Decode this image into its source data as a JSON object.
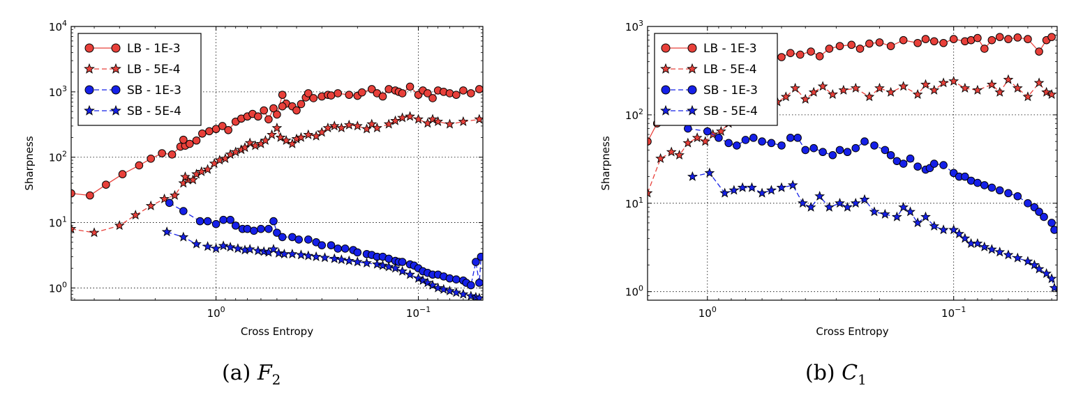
{
  "legend_labels": [
    "LB - 1E-3",
    "LB - 5E-4",
    "SB - 1E-3",
    "SB - 5E-4"
  ],
  "colors": {
    "lb": "#e8403a",
    "sb": "#1520e8",
    "axis": "#000000",
    "grid": "#000000"
  },
  "chart_data": [
    {
      "type": "line",
      "caption_prefix": "(a)",
      "caption_var": "F",
      "caption_sub": "2",
      "xlabel": "Cross Entropy",
      "ylabel": "Sharpness",
      "xscale": "log",
      "xreversed": true,
      "yscale": "log",
      "xlim": [
        5.2,
        0.048
      ],
      "ylim": [
        0.65,
        10000
      ],
      "xticks": [
        {
          "value": 1,
          "label": "10^0"
        },
        {
          "value": 0.1,
          "label": "10^-1"
        }
      ],
      "yticks": [
        {
          "value": 1,
          "label": "10^0"
        },
        {
          "value": 10,
          "label": "10^1"
        },
        {
          "value": 100,
          "label": "10^2"
        },
        {
          "value": 1000,
          "label": "10^3"
        },
        {
          "value": 10000,
          "label": "10^4"
        }
      ],
      "grid": true,
      "legend_position": "upper-left",
      "series": [
        {
          "name": "LB - 1E-3",
          "marker": "circle",
          "color": "lb",
          "linestyle": "solid",
          "x": [
            5.2,
            4.2,
            3.5,
            2.9,
            2.4,
            2.1,
            1.85,
            1.65,
            1.5,
            1.42,
            1.45,
            1.35,
            1.25,
            1.17,
            1.08,
            1.0,
            0.93,
            0.87,
            0.8,
            0.75,
            0.7,
            0.66,
            0.62,
            0.58,
            0.55,
            0.52,
            0.5,
            0.47,
            0.45,
            0.47,
            0.42,
            0.4,
            0.38,
            0.36,
            0.35,
            0.33,
            0.3,
            0.28,
            0.27,
            0.25,
            0.22,
            0.2,
            0.19,
            0.17,
            0.16,
            0.15,
            0.14,
            0.13,
            0.125,
            0.12,
            0.11,
            0.1,
            0.095,
            0.09,
            0.085,
            0.08,
            0.075,
            0.07,
            0.065,
            0.06,
            0.055,
            0.05
          ],
          "y": [
            28,
            26,
            38,
            55,
            75,
            95,
            115,
            110,
            145,
            150,
            185,
            160,
            180,
            230,
            250,
            270,
            300,
            260,
            350,
            390,
            420,
            460,
            420,
            520,
            380,
            560,
            450,
            900,
            660,
            600,
            600,
            520,
            650,
            820,
            950,
            800,
            850,
            900,
            880,
            950,
            900,
            870,
            980,
            1100,
            950,
            850,
            1100,
            1050,
            1000,
            950,
            1200,
            900,
            1050,
            950,
            800,
            1050,
            1000,
            950,
            900,
            1050,
            950,
            1100
          ]
        },
        {
          "name": "LB - 5E-4",
          "marker": "star",
          "color": "lb",
          "linestyle": "dashed",
          "x": [
            5.2,
            4.0,
            3.0,
            2.5,
            2.1,
            1.8,
            1.6,
            1.45,
            1.38,
            1.42,
            1.3,
            1.25,
            1.18,
            1.1,
            1.02,
            0.96,
            0.9,
            0.85,
            0.8,
            0.75,
            0.72,
            0.68,
            0.64,
            0.6,
            0.57,
            0.53,
            0.5,
            0.48,
            0.45,
            0.42,
            0.4,
            0.38,
            0.35,
            0.32,
            0.3,
            0.28,
            0.26,
            0.24,
            0.22,
            0.2,
            0.18,
            0.17,
            0.16,
            0.14,
            0.13,
            0.12,
            0.11,
            0.1,
            0.09,
            0.085,
            0.08,
            0.07,
            0.06,
            0.05
          ],
          "y": [
            8,
            7,
            9,
            13,
            18,
            23,
            26,
            40,
            45,
            50,
            45,
            55,
            60,
            65,
            80,
            90,
            95,
            110,
            120,
            130,
            140,
            165,
            150,
            160,
            180,
            220,
            280,
            200,
            180,
            160,
            190,
            200,
            220,
            210,
            240,
            280,
            300,
            280,
            310,
            300,
            270,
            320,
            280,
            320,
            360,
            400,
            420,
            380,
            330,
            380,
            350,
            320,
            350,
            380
          ]
        },
        {
          "name": "SB - 1E-3",
          "marker": "circle",
          "color": "sb",
          "linestyle": "dashed",
          "x": [
            1.7,
            1.45,
            1.2,
            1.1,
            1.0,
            0.92,
            0.85,
            0.8,
            0.74,
            0.7,
            0.65,
            0.6,
            0.55,
            0.52,
            0.5,
            0.47,
            0.42,
            0.39,
            0.35,
            0.32,
            0.3,
            0.27,
            0.25,
            0.23,
            0.21,
            0.2,
            0.18,
            0.17,
            0.16,
            0.15,
            0.14,
            0.13,
            0.125,
            0.12,
            0.11,
            0.105,
            0.1,
            0.095,
            0.09,
            0.085,
            0.08,
            0.075,
            0.07,
            0.065,
            0.06,
            0.058,
            0.055,
            0.052,
            0.05,
            0.049
          ],
          "y": [
            20,
            15,
            10.5,
            10.5,
            9.5,
            11,
            11,
            9,
            8,
            8,
            7.5,
            8,
            8,
            10.5,
            7,
            6,
            6,
            5.5,
            5.5,
            5,
            4.5,
            4.5,
            4,
            4,
            3.8,
            3.5,
            3.3,
            3.2,
            3,
            3,
            2.8,
            2.6,
            2.5,
            2.5,
            2.3,
            2.2,
            2.0,
            1.8,
            1.7,
            1.6,
            1.6,
            1.5,
            1.4,
            1.35,
            1.3,
            1.2,
            1.1,
            2.5,
            1.2,
            3.0
          ]
        },
        {
          "name": "SB - 5E-4",
          "marker": "star",
          "color": "sb",
          "linestyle": "dashed",
          "x": [
            1.75,
            1.45,
            1.25,
            1.1,
            1.0,
            0.92,
            0.85,
            0.78,
            0.72,
            0.68,
            0.62,
            0.58,
            0.55,
            0.52,
            0.49,
            0.46,
            0.42,
            0.38,
            0.35,
            0.32,
            0.29,
            0.26,
            0.24,
            0.22,
            0.2,
            0.18,
            0.16,
            0.15,
            0.14,
            0.13,
            0.12,
            0.11,
            0.1,
            0.095,
            0.09,
            0.085,
            0.08,
            0.075,
            0.07,
            0.065,
            0.06,
            0.055,
            0.052,
            0.05
          ],
          "y": [
            7.2,
            6,
            4.7,
            4.3,
            4,
            4.4,
            4.2,
            4.0,
            3.8,
            3.9,
            3.7,
            3.6,
            3.5,
            3.9,
            3.4,
            3.3,
            3.3,
            3.2,
            3.1,
            3.0,
            2.9,
            2.8,
            2.7,
            2.6,
            2.5,
            2.4,
            2.3,
            2.2,
            2.1,
            2.0,
            1.8,
            1.6,
            1.4,
            1.3,
            1.2,
            1.1,
            1.0,
            0.95,
            0.9,
            0.85,
            0.8,
            0.75,
            0.72,
            0.7
          ]
        }
      ]
    },
    {
      "type": "line",
      "caption_prefix": "(b)",
      "caption_var": "C",
      "caption_sub": "1",
      "xlabel": "Cross Entropy",
      "ylabel": "Sharpness",
      "xscale": "log",
      "xreversed": true,
      "yscale": "log",
      "xlim": [
        1.75,
        0.038
      ],
      "ylim": [
        0.8,
        1000
      ],
      "xticks": [
        {
          "value": 1,
          "label": "10^0"
        },
        {
          "value": 0.1,
          "label": "10^-1"
        }
      ],
      "yticks": [
        {
          "value": 1,
          "label": "10^0"
        },
        {
          "value": 10,
          "label": "10^1"
        },
        {
          "value": 100,
          "label": "10^2"
        },
        {
          "value": 1000,
          "label": "10^3"
        }
      ],
      "grid": true,
      "legend_position": "upper-left",
      "series": [
        {
          "name": "LB - 1E-3",
          "marker": "circle",
          "color": "lb",
          "linestyle": "solid",
          "x": [
            1.75,
            1.6,
            1.45,
            1.35,
            1.25,
            1.18,
            1.1,
            1.05,
            1.0,
            0.95,
            0.9,
            0.85,
            0.8,
            0.75,
            0.7,
            0.65,
            0.6,
            0.55,
            0.5,
            0.46,
            0.42,
            0.38,
            0.35,
            0.32,
            0.29,
            0.26,
            0.24,
            0.22,
            0.2,
            0.18,
            0.16,
            0.14,
            0.13,
            0.12,
            0.11,
            0.1,
            0.09,
            0.085,
            0.08,
            0.075,
            0.07,
            0.065,
            0.06,
            0.055,
            0.05,
            0.045,
            0.042,
            0.04
          ],
          "y": [
            50,
            80,
            120,
            160,
            200,
            240,
            260,
            230,
            280,
            300,
            260,
            300,
            320,
            340,
            330,
            360,
            380,
            420,
            450,
            500,
            480,
            520,
            460,
            560,
            600,
            620,
            560,
            640,
            660,
            600,
            700,
            650,
            720,
            680,
            650,
            720,
            680,
            700,
            740,
            560,
            700,
            760,
            720,
            750,
            720,
            520,
            700,
            760
          ]
        },
        {
          "name": "LB - 5E-4",
          "marker": "star",
          "color": "lb",
          "linestyle": "dashed",
          "x": [
            1.75,
            1.55,
            1.4,
            1.3,
            1.2,
            1.1,
            1.02,
            0.95,
            0.88,
            0.82,
            0.76,
            0.7,
            0.65,
            0.6,
            0.56,
            0.52,
            0.48,
            0.44,
            0.4,
            0.37,
            0.34,
            0.31,
            0.28,
            0.25,
            0.22,
            0.2,
            0.18,
            0.16,
            0.14,
            0.13,
            0.12,
            0.11,
            0.1,
            0.09,
            0.08,
            0.07,
            0.065,
            0.06,
            0.055,
            0.05,
            0.045,
            0.042,
            0.04
          ],
          "y": [
            13,
            32,
            38,
            35,
            48,
            55,
            50,
            60,
            65,
            80,
            100,
            130,
            120,
            150,
            170,
            140,
            160,
            200,
            150,
            180,
            210,
            170,
            190,
            200,
            160,
            200,
            180,
            210,
            170,
            220,
            190,
            230,
            240,
            200,
            190,
            220,
            180,
            250,
            200,
            160,
            230,
            180,
            170
          ]
        },
        {
          "name": "SB - 1E-3",
          "marker": "circle",
          "color": "sb",
          "linestyle": "dashed",
          "x": [
            1.2,
            1.0,
            0.9,
            0.82,
            0.76,
            0.7,
            0.65,
            0.6,
            0.55,
            0.5,
            0.46,
            0.43,
            0.4,
            0.37,
            0.34,
            0.31,
            0.29,
            0.27,
            0.25,
            0.23,
            0.21,
            0.19,
            0.18,
            0.17,
            0.16,
            0.15,
            0.14,
            0.13,
            0.125,
            0.12,
            0.11,
            0.1,
            0.095,
            0.09,
            0.085,
            0.08,
            0.075,
            0.07,
            0.065,
            0.06,
            0.055,
            0.05,
            0.047,
            0.045,
            0.043,
            0.04,
            0.039
          ],
          "y": [
            70,
            65,
            55,
            48,
            45,
            52,
            55,
            50,
            48,
            45,
            55,
            55,
            40,
            42,
            38,
            35,
            40,
            38,
            42,
            50,
            45,
            40,
            35,
            30,
            28,
            32,
            26,
            24,
            25,
            28,
            27,
            22,
            20,
            20,
            18,
            17,
            16,
            15,
            14,
            13,
            12,
            10,
            9,
            8,
            7,
            6,
            5
          ]
        },
        {
          "name": "SB - 5E-4",
          "marker": "star",
          "color": "sb",
          "linestyle": "dashed",
          "x": [
            1.15,
            0.98,
            0.85,
            0.78,
            0.72,
            0.66,
            0.6,
            0.55,
            0.5,
            0.45,
            0.41,
            0.38,
            0.35,
            0.32,
            0.29,
            0.27,
            0.25,
            0.23,
            0.21,
            0.19,
            0.17,
            0.16,
            0.15,
            0.14,
            0.13,
            0.12,
            0.11,
            0.1,
            0.095,
            0.09,
            0.085,
            0.08,
            0.075,
            0.07,
            0.065,
            0.06,
            0.055,
            0.05,
            0.047,
            0.045,
            0.042,
            0.04,
            0.039
          ],
          "y": [
            20,
            22,
            13,
            14,
            15,
            15,
            13,
            14,
            15,
            16,
            10,
            9,
            12,
            9,
            10,
            9,
            10,
            11,
            8,
            7.5,
            7,
            9,
            8,
            6,
            7,
            5.5,
            5,
            5,
            4.5,
            4,
            3.5,
            3.5,
            3.2,
            3,
            2.8,
            2.6,
            2.4,
            2.2,
            2.0,
            1.8,
            1.6,
            1.4,
            1.1
          ]
        }
      ]
    }
  ]
}
